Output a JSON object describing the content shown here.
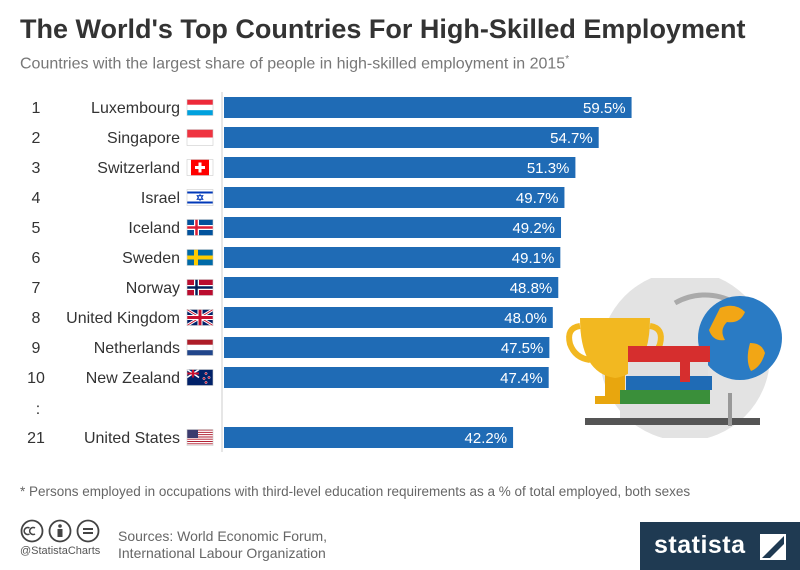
{
  "header": {
    "title": "The World's Top Countries For High-Skilled Employment",
    "subtitle": "Countries with the largest share of people in high-skilled employment in 2015",
    "subtitle_mark": "*"
  },
  "chart_data": {
    "type": "bar",
    "orientation": "horizontal",
    "ranks": [
      "1",
      "2",
      "3",
      "4",
      "5",
      "6",
      "7",
      "8",
      "9",
      "10",
      "21"
    ],
    "categories": [
      "Luxembourg",
      "Singapore",
      "Switzerland",
      "Israel",
      "Iceland",
      "Sweden",
      "Norway",
      "United Kingdom",
      "Netherlands",
      "New Zealand",
      "United States"
    ],
    "values": [
      59.5,
      54.7,
      51.3,
      49.7,
      49.2,
      49.1,
      48.8,
      48.0,
      47.5,
      47.4,
      42.2
    ],
    "value_labels": [
      "59.5%",
      "54.7%",
      "51.3%",
      "49.7%",
      "49.2%",
      "49.1%",
      "48.8%",
      "48.0%",
      "47.5%",
      "47.4%",
      "42.2%"
    ],
    "flags": [
      "lu",
      "sg",
      "ch",
      "il",
      "is",
      "se",
      "no",
      "gb",
      "nl",
      "nz",
      "us"
    ],
    "gap_marker": ":",
    "bar_color": "#1f6bb5",
    "grid": false,
    "legend": "none"
  },
  "footer": {
    "footnote": "* Persons employed in occupations with third-level education requirements as a % of total employed, both sexes",
    "sources_line1": "Sources: World Economic Forum,",
    "sources_line2": "International Labour Organization",
    "handle": "@StatistaCharts",
    "brand": "statista",
    "brand_color": "#1f3a52",
    "license_icons": [
      "cc-icon",
      "by-icon",
      "nd-icon"
    ]
  }
}
